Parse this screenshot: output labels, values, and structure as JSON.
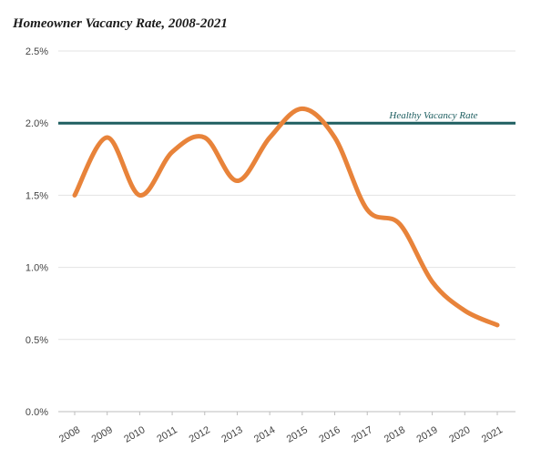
{
  "chart_data": {
    "type": "line",
    "title": "Homeowner Vacancy Rate, 2008-2021",
    "xlabel": "",
    "ylabel": "",
    "categories": [
      "2008",
      "2009",
      "2010",
      "2011",
      "2012",
      "2013",
      "2014",
      "2015",
      "2016",
      "2017",
      "2018",
      "2019",
      "2020",
      "2021"
    ],
    "series": [
      {
        "values": [
          1.5,
          1.9,
          1.5,
          1.8,
          1.9,
          1.6,
          1.9,
          2.1,
          1.9,
          1.4,
          1.3,
          0.9,
          0.7,
          0.6
        ],
        "color": "#e8833a"
      }
    ],
    "y_ticks": [
      "0.0%",
      "0.5%",
      "1.0%",
      "1.5%",
      "2.0%",
      "2.5%"
    ],
    "ylim": [
      0,
      2.5
    ],
    "grid": true,
    "reference_line": {
      "label": "Healthy Vacancy Rate",
      "value": 2.0,
      "color": "#1f5f61"
    }
  }
}
